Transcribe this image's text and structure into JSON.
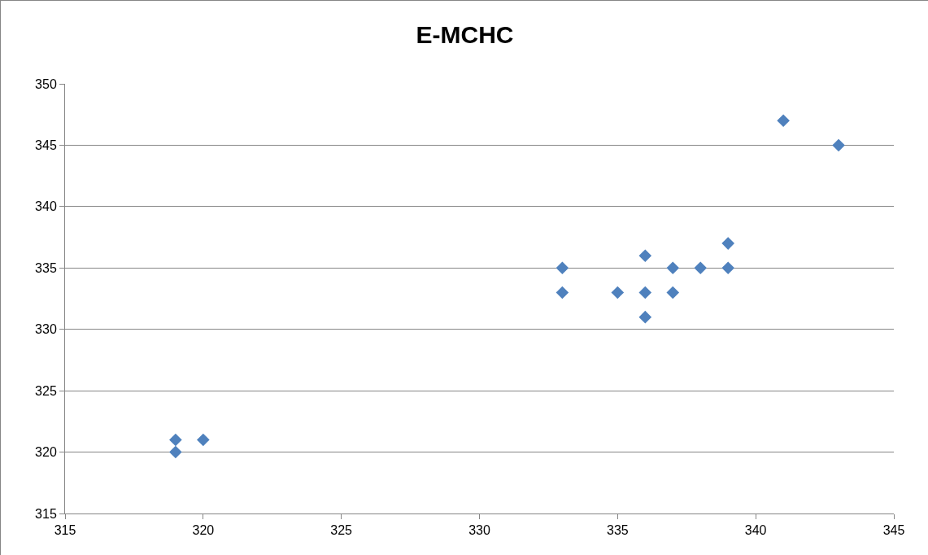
{
  "chart_data": {
    "type": "scatter",
    "title": "E-MCHC",
    "x": [
      319,
      319,
      320,
      333,
      333,
      335,
      336,
      336,
      336,
      337,
      337,
      338,
      339,
      339,
      341,
      343
    ],
    "values": [
      321,
      320,
      321,
      335,
      333,
      333,
      336,
      333,
      331,
      335,
      333,
      335,
      337,
      335,
      347,
      345
    ],
    "color": "#4f81bd",
    "marker": "diamond",
    "xlim": [
      315,
      345
    ],
    "xticks": [
      315,
      320,
      325,
      330,
      335,
      340,
      345
    ],
    "ylim": [
      315,
      350
    ],
    "yticks": [
      315,
      320,
      325,
      330,
      335,
      340,
      345,
      350
    ],
    "grid": "y"
  }
}
